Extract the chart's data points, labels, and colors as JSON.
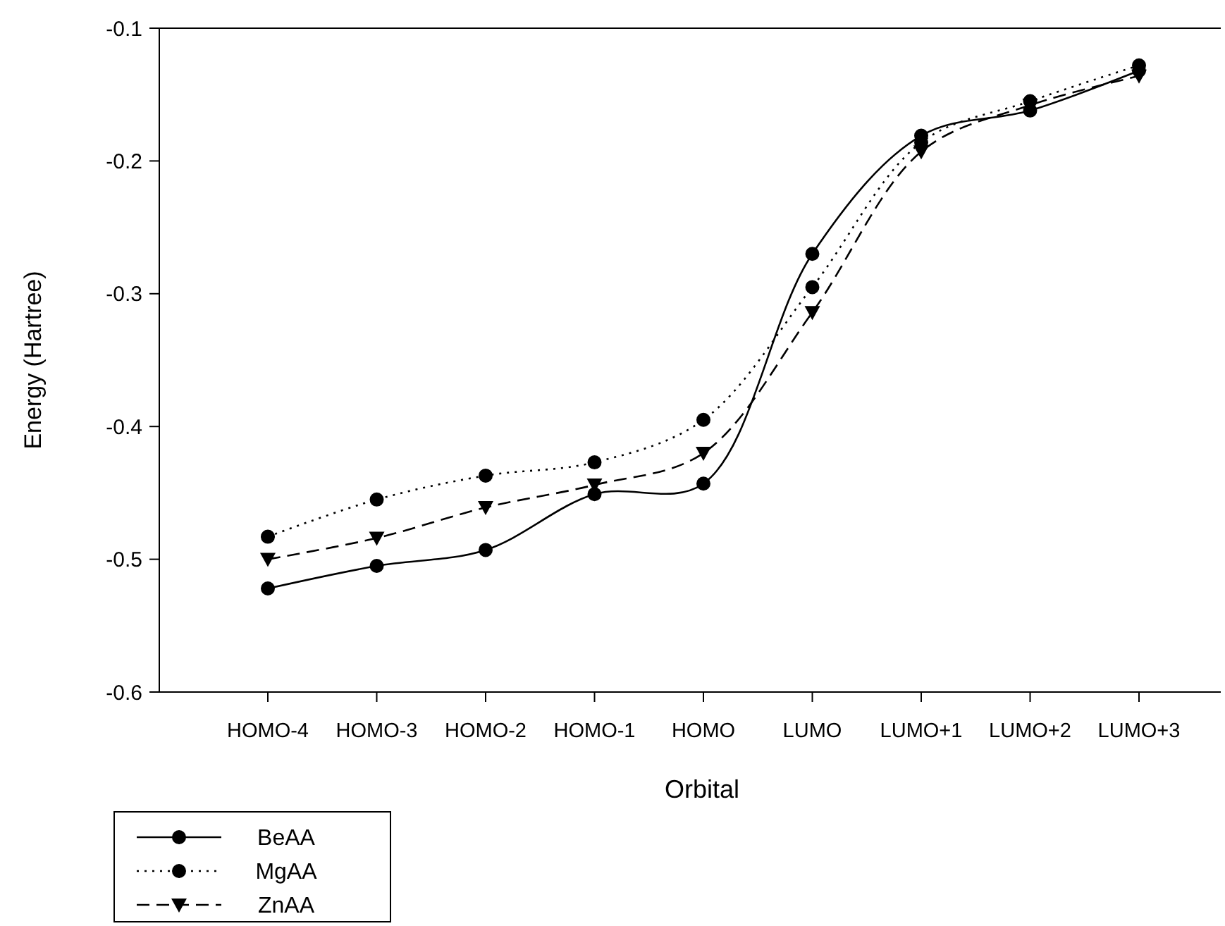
{
  "chart_data": {
    "type": "line",
    "xlabel": "Orbital",
    "ylabel": "Energy (Hartree)",
    "categories": [
      "HOMO-4",
      "HOMO-3",
      "HOMO-2",
      "HOMO-1",
      "HOMO",
      "LUMO",
      "LUMO+1",
      "LUMO+2",
      "LUMO+3"
    ],
    "ylim": [
      -0.6,
      -0.1
    ],
    "yticks": [
      -0.6,
      -0.5,
      -0.4,
      -0.3,
      -0.2,
      -0.1
    ],
    "grid": false,
    "legend": "bottom left",
    "series": [
      {
        "name": "BeAA",
        "color": "#000000",
        "marker": "circle",
        "line_style": "solid",
        "values": [
          -0.522,
          -0.505,
          -0.493,
          -0.451,
          -0.443,
          -0.27,
          -0.181,
          -0.162,
          -0.132
        ]
      },
      {
        "name": "MgAA",
        "color": "#000000",
        "marker": "circle",
        "line_style": "dotted",
        "values": [
          -0.483,
          -0.455,
          -0.437,
          -0.427,
          -0.395,
          -0.295,
          -0.186,
          -0.155,
          -0.128
        ]
      },
      {
        "name": "ZnAA",
        "color": "#000000",
        "marker": "triangle",
        "line_style": "dashed",
        "values": [
          -0.5,
          -0.484,
          -0.461,
          -0.444,
          -0.42,
          -0.314,
          -0.193,
          -0.158,
          -0.136
        ]
      }
    ]
  }
}
